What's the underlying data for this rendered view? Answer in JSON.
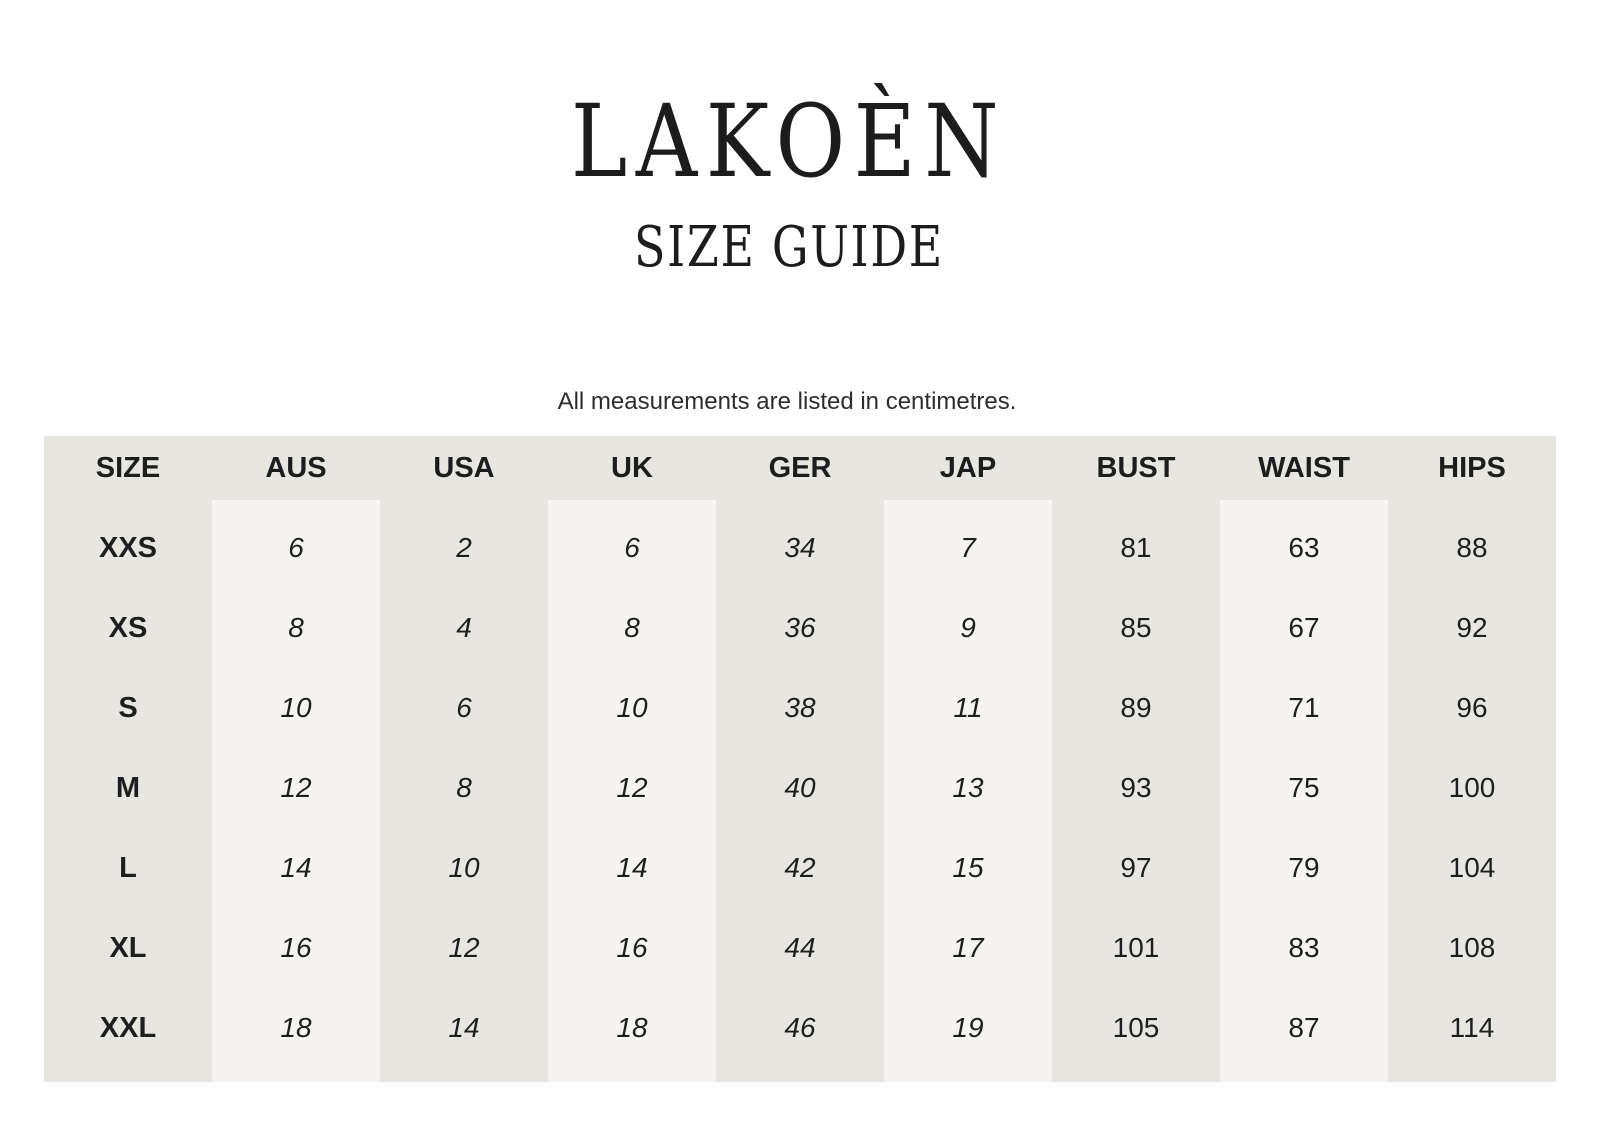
{
  "page": {
    "brand": "LAKOÈN",
    "title": "SIZE GUIDE",
    "note": "All measurements are listed in centimetres."
  },
  "table": {
    "columns": [
      "SIZE",
      "AUS",
      "USA",
      "UK",
      "GER",
      "JAP",
      "BUST",
      "WAIST",
      "HIPS"
    ],
    "rows": [
      [
        "XXS",
        "6",
        "2",
        "6",
        "34",
        "7",
        "81",
        "63",
        "88"
      ],
      [
        "XS",
        "8",
        "4",
        "8",
        "36",
        "9",
        "85",
        "67",
        "92"
      ],
      [
        "S",
        "10",
        "6",
        "10",
        "38",
        "11",
        "89",
        "71",
        "96"
      ],
      [
        "M",
        "12",
        "8",
        "12",
        "40",
        "13",
        "93",
        "75",
        "100"
      ],
      [
        "L",
        "14",
        "10",
        "14",
        "42",
        "15",
        "97",
        "79",
        "104"
      ],
      [
        "XL",
        "16",
        "12",
        "16",
        "44",
        "17",
        "101",
        "83",
        "108"
      ],
      [
        "XXL",
        "18",
        "14",
        "18",
        "46",
        "19",
        "105",
        "87",
        "114"
      ]
    ]
  },
  "colors": {
    "page_bg": "#ffffff",
    "table_bg": "#e8e6e1",
    "stripe_bg": "#f5f4f0",
    "text": "#1e1e1e"
  }
}
